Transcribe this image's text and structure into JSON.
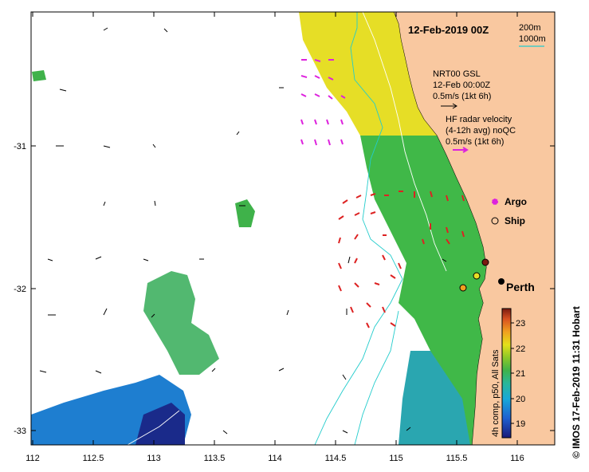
{
  "title": "12-Feb-2019 00Z",
  "depth_contours": {
    "line1": "200m",
    "line2": "1000m"
  },
  "model_legend": {
    "line1": "NRT00 GSL",
    "line2": "12-Feb 00:00Z",
    "line3": "0.5m/s (1kt 6h)"
  },
  "radar_legend": {
    "line1": "HF radar velocity",
    "line2": "(4-12h avg) noQC",
    "line3": "0.5m/s (1kt 6h)"
  },
  "markers": {
    "argo": "Argo",
    "ship": "Ship"
  },
  "city": "Perth",
  "colorbar": {
    "label": "4h comp, p50, All Sats",
    "ticks": [
      "23",
      "22",
      "21",
      "20",
      "19"
    ]
  },
  "x_ticks": [
    "112",
    "112.5",
    "113",
    "113.5",
    "114",
    "114.5",
    "115",
    "115.5",
    "116"
  ],
  "y_ticks": [
    "-31",
    "-32",
    "-33"
  ],
  "credit": "© IMOS 17-Feb-2019 11:31 Hobart",
  "colors": {
    "land": "#f9c8a0",
    "coast": "#000000",
    "contour": "#22cccc",
    "radar": "#dd2222",
    "radar_ne": "#dd22dd",
    "model": "#000000"
  }
}
